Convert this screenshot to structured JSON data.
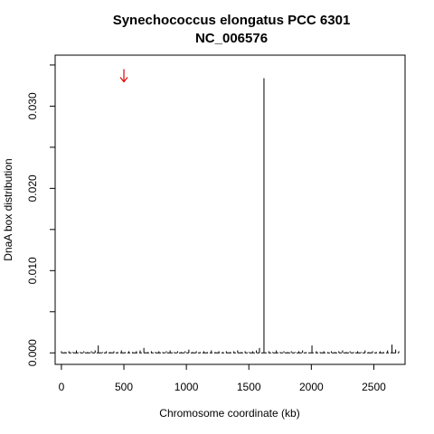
{
  "chart_data": {
    "type": "bar",
    "title": "Synechococcus elongatus PCC 6301",
    "subtitle": "NC_006576",
    "xlabel": "Chromosome coordinate (kb)",
    "ylabel": "DnaA box distribution",
    "xlim": [
      -50,
      2750
    ],
    "ylim": [
      -0.0014,
      0.0362
    ],
    "xticks": [
      0,
      500,
      1000,
      1500,
      2000,
      2500
    ],
    "xtick_labels": [
      "0",
      "500",
      "1000",
      "1500",
      "2000",
      "2500"
    ],
    "yticks": [
      0,
      0.01,
      0.02,
      0.03
    ],
    "ytick_labels": [
      "0.000",
      "0.010",
      "0.020",
      "0.030"
    ],
    "grid": false,
    "series": [
      {
        "x": [
          0,
          30,
          60,
          90,
          120,
          150,
          180,
          210,
          240,
          270,
          295,
          330,
          360,
          390,
          420,
          450,
          480,
          510,
          540,
          570,
          600,
          630,
          660,
          690,
          720,
          750,
          780,
          810,
          840,
          870,
          900,
          930,
          960,
          990,
          1020,
          1050,
          1080,
          1110,
          1140,
          1170,
          1200,
          1230,
          1260,
          1290,
          1320,
          1350,
          1380,
          1410,
          1440,
          1470,
          1500,
          1530,
          1560,
          1585,
          1621,
          1660,
          1690,
          1720,
          1750,
          1780,
          1810,
          1840,
          1870,
          1900,
          1930,
          1960,
          2005,
          2040,
          2070,
          2100,
          2130,
          2160,
          2190,
          2220,
          2250,
          2280,
          2310,
          2340,
          2370,
          2400,
          2430,
          2460,
          2490,
          2520,
          2550,
          2580,
          2610,
          2645,
          2675,
          2700
        ],
        "values": [
          0.0002,
          0.0001,
          0.0002,
          0.0001,
          0.0003,
          0.0001,
          0.0002,
          0.0001,
          0.0002,
          0.0003,
          0.0009,
          0.0001,
          0.0002,
          0.0001,
          0.0002,
          0.0001,
          0.0003,
          0.0001,
          0.0002,
          0.0001,
          0.0002,
          0.0003,
          0.0006,
          0.0001,
          0.0002,
          0.0001,
          0.0002,
          0.0001,
          0.0002,
          0.0003,
          0.0001,
          0.0002,
          0.0001,
          0.0002,
          0.0004,
          0.0001,
          0.0002,
          0.0001,
          0.0002,
          0.0001,
          0.0003,
          0.0001,
          0.0002,
          0.0001,
          0.0002,
          0.0001,
          0.0002,
          0.0003,
          0.0001,
          0.0002,
          0.0001,
          0.0002,
          0.0003,
          0.0006,
          0.0334,
          0.0002,
          0.0001,
          0.0003,
          0.0001,
          0.0002,
          0.0001,
          0.0002,
          0.0001,
          0.0002,
          0.0003,
          0.0001,
          0.0009,
          0.0002,
          0.0001,
          0.0002,
          0.0001,
          0.0002,
          0.0001,
          0.0002,
          0.0003,
          0.0001,
          0.0002,
          0.0001,
          0.0002,
          0.0001,
          0.0003,
          0.0001,
          0.0002,
          0.0001,
          0.0002,
          0.0001,
          0.0003,
          0.001,
          0.0004,
          0.0002
        ]
      }
    ],
    "annotations": [
      {
        "type": "arrow",
        "x": 500,
        "y": 0.0345,
        "direction": "down",
        "color": "#e00000"
      }
    ],
    "colors": {
      "series": "#000000",
      "arrow": "#e00000",
      "axis": "#000000"
    }
  }
}
